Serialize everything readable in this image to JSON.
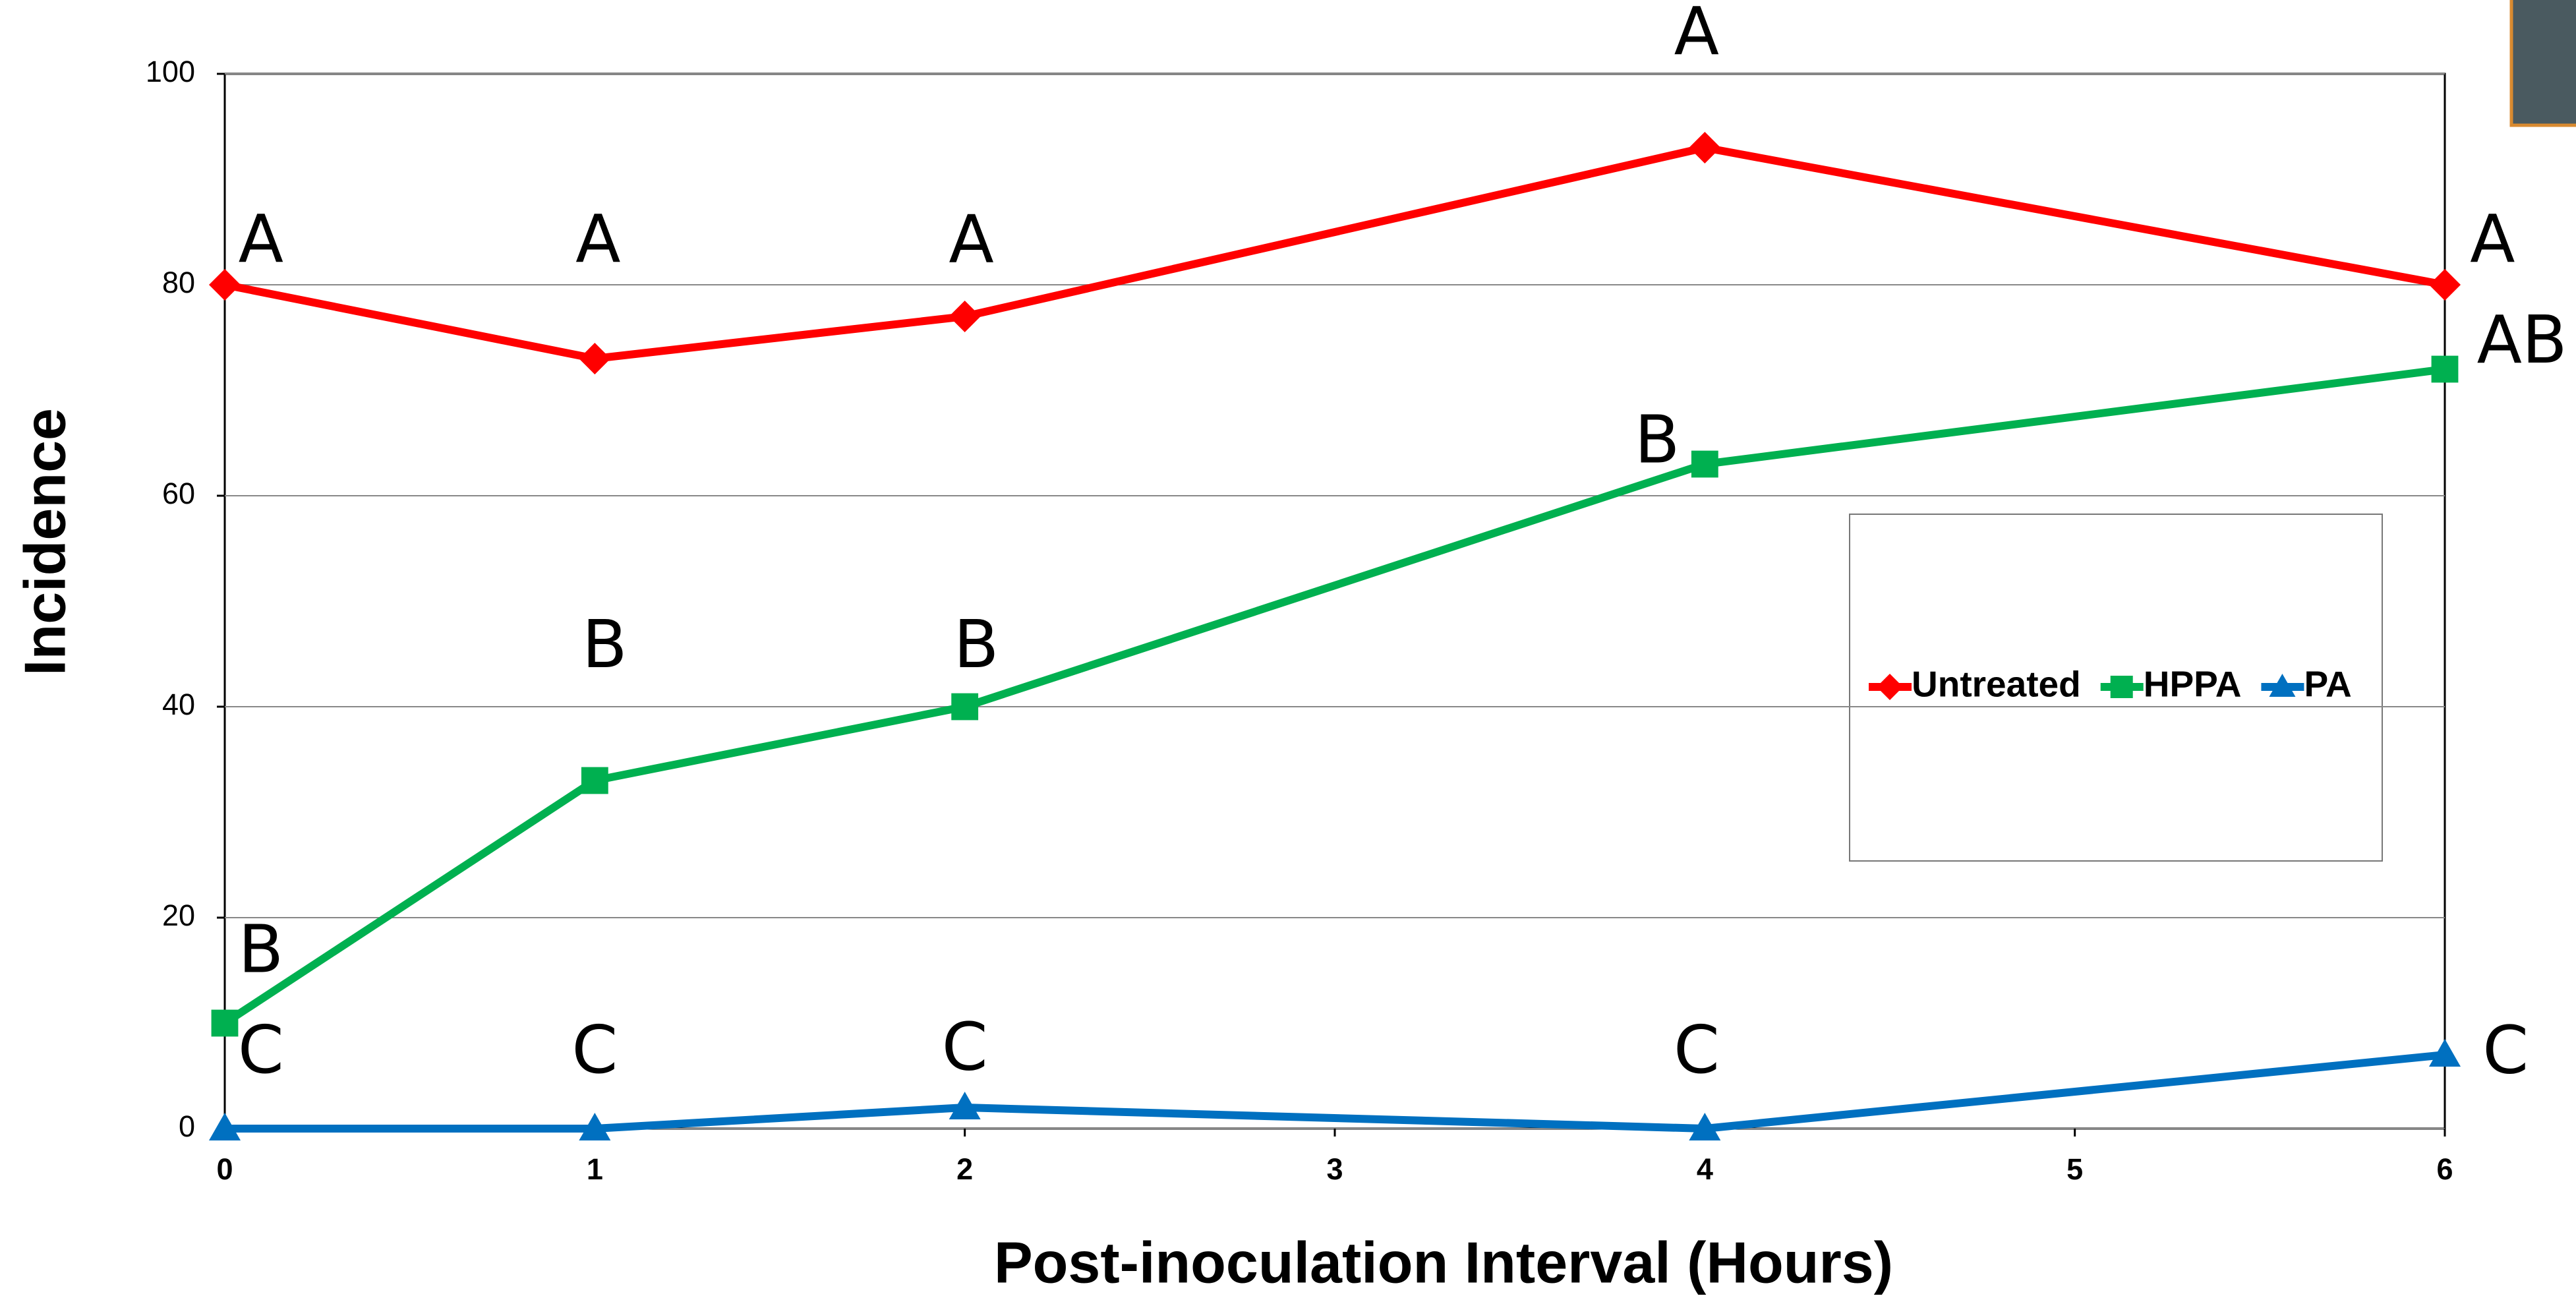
{
  "chart_data": {
    "type": "line",
    "x_label": "Post-inoculation Interval (Hours)",
    "y_label": "Incidence",
    "x": [
      0,
      1,
      2,
      4,
      6
    ],
    "xlim": [
      0,
      6
    ],
    "xticks": [
      0,
      1,
      2,
      3,
      4,
      5,
      6
    ],
    "ylim": [
      0,
      100
    ],
    "yticks": [
      0,
      20,
      40,
      60,
      80,
      100
    ],
    "grid": true,
    "legend": "right",
    "series": [
      {
        "name": "Untreated",
        "color": "#ff0000",
        "marker": "diamond",
        "values": [
          80,
          73,
          77,
          93,
          80
        ],
        "letters": [
          "A",
          "A",
          "A",
          "A",
          "A"
        ]
      },
      {
        "name": "HPPA",
        "color": "#00b050",
        "marker": "square",
        "values": [
          10,
          33,
          40,
          63,
          72
        ],
        "letters": [
          "B",
          "B",
          "B",
          "B",
          "AB"
        ]
      },
      {
        "name": "PA",
        "color": "#0070c0",
        "marker": "triangle",
        "values": [
          0,
          0,
          2,
          0,
          7
        ],
        "letters": [
          "C",
          "C",
          "C",
          "C",
          "C"
        ]
      }
    ]
  }
}
